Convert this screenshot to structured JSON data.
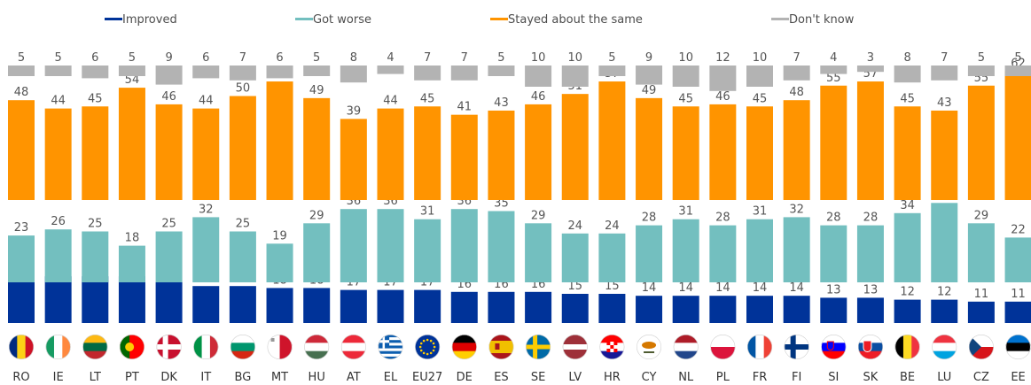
{
  "chart_data": {
    "type": "bar",
    "stacked": true,
    "categories": [
      "RO",
      "IE",
      "LT",
      "PT",
      "DK",
      "IT",
      "BG",
      "MT",
      "HU",
      "AT",
      "EL",
      "EU27",
      "DE",
      "ES",
      "SE",
      "LV",
      "HR",
      "CY",
      "NL",
      "PL",
      "FR",
      "FI",
      "SI",
      "SK",
      "BE",
      "LU",
      "CZ",
      "EE"
    ],
    "series": [
      {
        "name": "Improved",
        "color": "#003399",
        "values": [
          25,
          24,
          24,
          24,
          21,
          19,
          19,
          18,
          18,
          17,
          17,
          17,
          16,
          16,
          16,
          15,
          15,
          14,
          14,
          14,
          14,
          14,
          13,
          13,
          12,
          12,
          11,
          11
        ]
      },
      {
        "name": "Got worse",
        "color": "#73bfbf",
        "values": [
          23,
          26,
          25,
          18,
          25,
          32,
          25,
          19,
          29,
          36,
          36,
          31,
          36,
          35,
          29,
          24,
          24,
          28,
          31,
          28,
          31,
          32,
          28,
          28,
          34,
          39,
          29,
          22
        ]
      },
      {
        "name": "Stayed about the same",
        "color": "#ff9400",
        "values": [
          48,
          44,
          45,
          54,
          46,
          44,
          50,
          57,
          49,
          39,
          44,
          45,
          41,
          43,
          46,
          51,
          57,
          49,
          45,
          46,
          45,
          48,
          55,
          57,
          45,
          43,
          55,
          62
        ]
      },
      {
        "name": "Don't know",
        "color": "#b3b3b3",
        "values": [
          5,
          5,
          6,
          5,
          9,
          6,
          7,
          6,
          5,
          8,
          4,
          7,
          7,
          5,
          10,
          10,
          5,
          9,
          10,
          12,
          10,
          7,
          4,
          3,
          8,
          7,
          5,
          5
        ]
      }
    ],
    "legend": {
      "position": "top",
      "entries": [
        "Improved",
        "Got worse",
        "Stayed about the same",
        "Don't know"
      ]
    },
    "flags": [
      "RO",
      "IE",
      "LT",
      "PT",
      "DK",
      "IT",
      "BG",
      "MT",
      "HU",
      "AT",
      "EL",
      "EU27",
      "DE",
      "ES",
      "SE",
      "LV",
      "HR",
      "CY",
      "NL",
      "PL",
      "FR",
      "FI",
      "SI",
      "SK",
      "BE",
      "LU",
      "CZ",
      "EE"
    ],
    "grid": false
  }
}
